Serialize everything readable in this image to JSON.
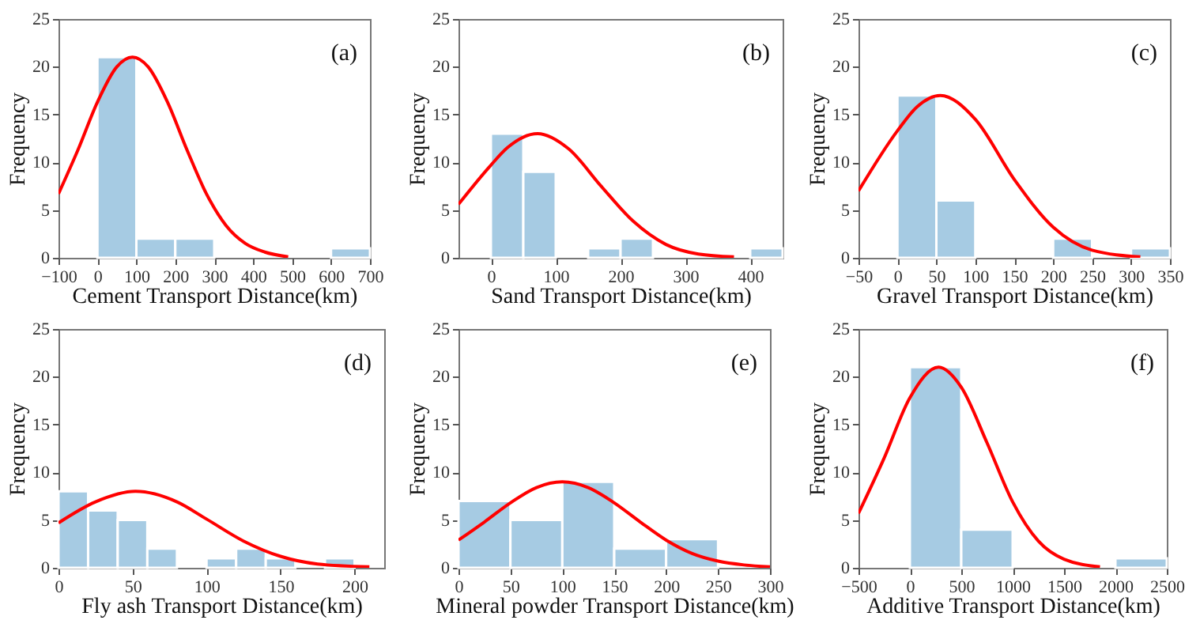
{
  "chart_data": [
    {
      "type": "histogram",
      "xlabel": "Cement Transport Distance(km)",
      "ylabel": "Frequency",
      "annotations": [
        "(a)"
      ],
      "xlim": [
        -100,
        700
      ],
      "xticks": [
        -100,
        0,
        100,
        200,
        300,
        400,
        500,
        600,
        700
      ],
      "ylim": [
        0,
        25
      ],
      "yticks": [
        0,
        5,
        10,
        15,
        20,
        25
      ],
      "series": [
        {
          "type": "histogram",
          "color": "#a6cbe3",
          "bins": [
            0,
            100,
            200,
            300,
            400,
            500,
            600,
            700
          ],
          "values": [
            21,
            2,
            2,
            0,
            0,
            0,
            1
          ]
        },
        {
          "type": "line",
          "color": "#ff0000",
          "x": [
            -100,
            -50,
            0,
            50,
            90,
            130,
            180,
            230,
            280,
            330,
            380,
            430,
            490
          ],
          "values": [
            6.7,
            11.3,
            16.3,
            20.0,
            21,
            20.0,
            16.3,
            11.3,
            6.7,
            3.4,
            1.5,
            0.6,
            0.1
          ]
        }
      ]
    },
    {
      "type": "histogram",
      "xlabel": "Sand Transport Distance(km)",
      "ylabel": "Frequency",
      "annotations": [
        "(b)"
      ],
      "xlim": [
        -50,
        450
      ],
      "xticks": [
        0,
        100,
        200,
        300,
        400
      ],
      "ylim": [
        0,
        25
      ],
      "yticks": [
        0,
        5,
        10,
        15,
        20,
        25
      ],
      "series": [
        {
          "type": "histogram",
          "color": "#a6cbe3",
          "bins": [
            0,
            50,
            100,
            150,
            200,
            250,
            300,
            350,
            400,
            450
          ],
          "values": [
            13,
            9,
            0,
            1,
            2,
            0,
            0,
            0,
            1
          ]
        },
        {
          "type": "line",
          "color": "#ff0000",
          "x": [
            -50,
            0,
            25,
            72,
            120,
            170,
            220,
            270,
            320,
            375
          ],
          "values": [
            5.6,
            9.7,
            11.5,
            13,
            11.4,
            7.5,
            3.8,
            1.4,
            0.4,
            0.1
          ]
        }
      ]
    },
    {
      "type": "histogram",
      "xlabel": "Gravel Transport Distance(km)",
      "ylabel": "Frequency",
      "annotations": [
        "(c)"
      ],
      "xlim": [
        -50,
        350
      ],
      "xticks": [
        -50,
        0,
        50,
        100,
        150,
        200,
        250,
        300,
        350
      ],
      "ylim": [
        0,
        25
      ],
      "yticks": [
        0,
        5,
        10,
        15,
        20,
        25
      ],
      "series": [
        {
          "type": "histogram",
          "color": "#a6cbe3",
          "bins": [
            0,
            50,
            100,
            150,
            200,
            250,
            300,
            350
          ],
          "values": [
            17,
            6,
            0,
            0,
            2,
            0,
            1
          ]
        },
        {
          "type": "line",
          "color": "#ff0000",
          "x": [
            -50,
            0,
            25,
            55,
            100,
            150,
            200,
            250,
            312
          ],
          "values": [
            7.0,
            13.3,
            15.8,
            17,
            14.5,
            8.2,
            3.2,
            0.8,
            0.1
          ]
        }
      ]
    },
    {
      "type": "histogram",
      "xlabel": "Fly ash Transport Distance(km)",
      "ylabel": "Frequency",
      "annotations": [
        "(d)"
      ],
      "xlim": [
        0,
        220
      ],
      "xticks": [
        0,
        50,
        100,
        150,
        200
      ],
      "ylim": [
        0,
        25
      ],
      "yticks": [
        0,
        5,
        10,
        15,
        20,
        25
      ],
      "series": [
        {
          "type": "histogram",
          "color": "#a6cbe3",
          "bins": [
            0,
            20,
            40,
            60,
            80,
            100,
            120,
            140,
            160,
            180,
            200
          ],
          "values": [
            8,
            6,
            5,
            2,
            0,
            1,
            2,
            1,
            0,
            1
          ]
        },
        {
          "type": "line",
          "color": "#ff0000",
          "x": [
            0,
            25,
            52,
            80,
            100,
            125,
            150,
            175,
            210
          ],
          "values": [
            4.7,
            6.9,
            8,
            6.9,
            5.1,
            2.8,
            1.2,
            0.4,
            0.1
          ]
        }
      ]
    },
    {
      "type": "histogram",
      "xlabel": "Mineral powder Transport Distance(km)",
      "ylabel": "Frequency",
      "annotations": [
        "(e)"
      ],
      "xlim": [
        0,
        300
      ],
      "xticks": [
        0,
        50,
        100,
        150,
        200,
        250,
        300
      ],
      "ylim": [
        0,
        25
      ],
      "yticks": [
        0,
        5,
        10,
        15,
        20,
        25
      ],
      "series": [
        {
          "type": "histogram",
          "color": "#a6cbe3",
          "bins": [
            0,
            50,
            100,
            150,
            200,
            250
          ],
          "values": [
            7,
            5,
            9,
            2,
            3
          ]
        },
        {
          "type": "line",
          "color": "#ff0000",
          "x": [
            0,
            25,
            50,
            75,
            100,
            125,
            150,
            175,
            200,
            225,
            250,
            275,
            300
          ],
          "values": [
            2.9,
            4.8,
            6.8,
            8.4,
            9,
            8.4,
            6.8,
            4.8,
            2.9,
            1.5,
            0.7,
            0.3,
            0.1
          ]
        }
      ]
    },
    {
      "type": "histogram",
      "xlabel": "Additive Transport Distance(km)",
      "ylabel": "Frequency",
      "annotations": [
        "(f)"
      ],
      "xlim": [
        -500,
        2500
      ],
      "xticks": [
        -500,
        0,
        500,
        1000,
        1500,
        2000,
        2500
      ],
      "ylim": [
        0,
        25
      ],
      "yticks": [
        0,
        5,
        10,
        15,
        20,
        25
      ],
      "series": [
        {
          "type": "histogram",
          "color": "#a6cbe3",
          "bins": [
            0,
            500,
            1000,
            1500,
            2000,
            2500
          ],
          "values": [
            21,
            4,
            0,
            0,
            1
          ]
        },
        {
          "type": "line",
          "color": "#ff0000",
          "x": [
            -500,
            -250,
            0,
            280,
            500,
            750,
            1000,
            1250,
            1500,
            1850
          ],
          "values": [
            5.7,
            11.5,
            17.8,
            21,
            18.9,
            13.1,
            6.9,
            2.8,
            0.9,
            0.1
          ]
        }
      ]
    }
  ]
}
